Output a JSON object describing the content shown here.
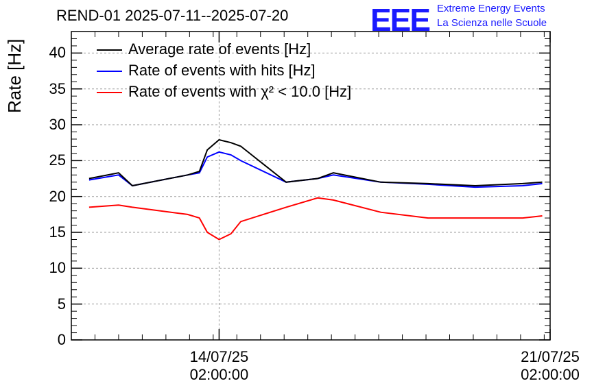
{
  "title": "REND-01 2025-07-11--2025-07-20",
  "logo": {
    "mark": "EEE",
    "line1": "Extreme Energy Events",
    "line2": "La Scienza nelle Scuole",
    "color": "#1a1aff"
  },
  "chart_data": {
    "type": "line",
    "ylabel": "Rate [Hz]",
    "ylim": [
      0,
      43
    ],
    "yticks": [
      "0",
      "5",
      "10",
      "15",
      "20",
      "25",
      "30",
      "35",
      "40"
    ],
    "xlim": [
      "2025-07-10T23:00",
      "2025-07-21T02:00"
    ],
    "xticks": [
      {
        "date": "14/07/25",
        "time": "02:00:00",
        "x": "2025-07-14T02:00"
      },
      {
        "date": "21/07/25",
        "time": "02:00:00",
        "x": "2025-07-21T02:00"
      }
    ],
    "grid": true,
    "legend_position": "top-left",
    "series": [
      {
        "name": "Average rate of events [Hz]",
        "color": "#000000",
        "x": [
          "2025-07-11T08:00",
          "2025-07-11T23:00",
          "2025-07-12T06:00",
          "2025-07-13T10:00",
          "2025-07-13T16:00",
          "2025-07-13T20:00",
          "2025-07-14T02:00",
          "2025-07-14T08:00",
          "2025-07-14T13:00",
          "2025-07-15T12:00",
          "2025-07-16T04:00",
          "2025-07-16T12:00",
          "2025-07-17T12:00",
          "2025-07-18T12:00",
          "2025-07-19T12:00",
          "2025-07-20T12:00",
          "2025-07-20T22:00"
        ],
        "y": [
          22.5,
          23.3,
          21.5,
          23.0,
          23.5,
          26.5,
          27.9,
          27.5,
          27.0,
          22.0,
          22.5,
          23.3,
          22.0,
          21.8,
          21.5,
          21.8,
          22.0
        ]
      },
      {
        "name": "Rate of events with hits [Hz]",
        "color": "#0000ff",
        "x": [
          "2025-07-11T08:00",
          "2025-07-11T23:00",
          "2025-07-12T06:00",
          "2025-07-13T10:00",
          "2025-07-13T16:00",
          "2025-07-13T20:00",
          "2025-07-14T02:00",
          "2025-07-14T08:00",
          "2025-07-14T13:00",
          "2025-07-15T12:00",
          "2025-07-16T04:00",
          "2025-07-16T12:00",
          "2025-07-17T12:00",
          "2025-07-18T12:00",
          "2025-07-19T12:00",
          "2025-07-20T12:00",
          "2025-07-20T22:00"
        ],
        "y": [
          22.3,
          23.0,
          21.5,
          23.0,
          23.3,
          25.5,
          26.2,
          25.8,
          25.0,
          22.0,
          22.5,
          23.0,
          22.0,
          21.7,
          21.3,
          21.5,
          21.8
        ]
      },
      {
        "name": "Rate of events with χ² < 10.0 [Hz]",
        "color": "#ff0000",
        "x": [
          "2025-07-11T08:00",
          "2025-07-11T23:00",
          "2025-07-12T06:00",
          "2025-07-13T10:00",
          "2025-07-13T16:00",
          "2025-07-13T20:00",
          "2025-07-14T02:00",
          "2025-07-14T08:00",
          "2025-07-14T13:00",
          "2025-07-15T12:00",
          "2025-07-16T04:00",
          "2025-07-16T12:00",
          "2025-07-17T12:00",
          "2025-07-18T12:00",
          "2025-07-19T12:00",
          "2025-07-20T12:00",
          "2025-07-20T22:00"
        ],
        "y": [
          18.5,
          18.8,
          18.5,
          17.5,
          17.0,
          15.0,
          14.0,
          14.8,
          16.5,
          18.5,
          19.8,
          19.5,
          17.8,
          17.0,
          17.0,
          17.0,
          17.3
        ]
      }
    ]
  }
}
